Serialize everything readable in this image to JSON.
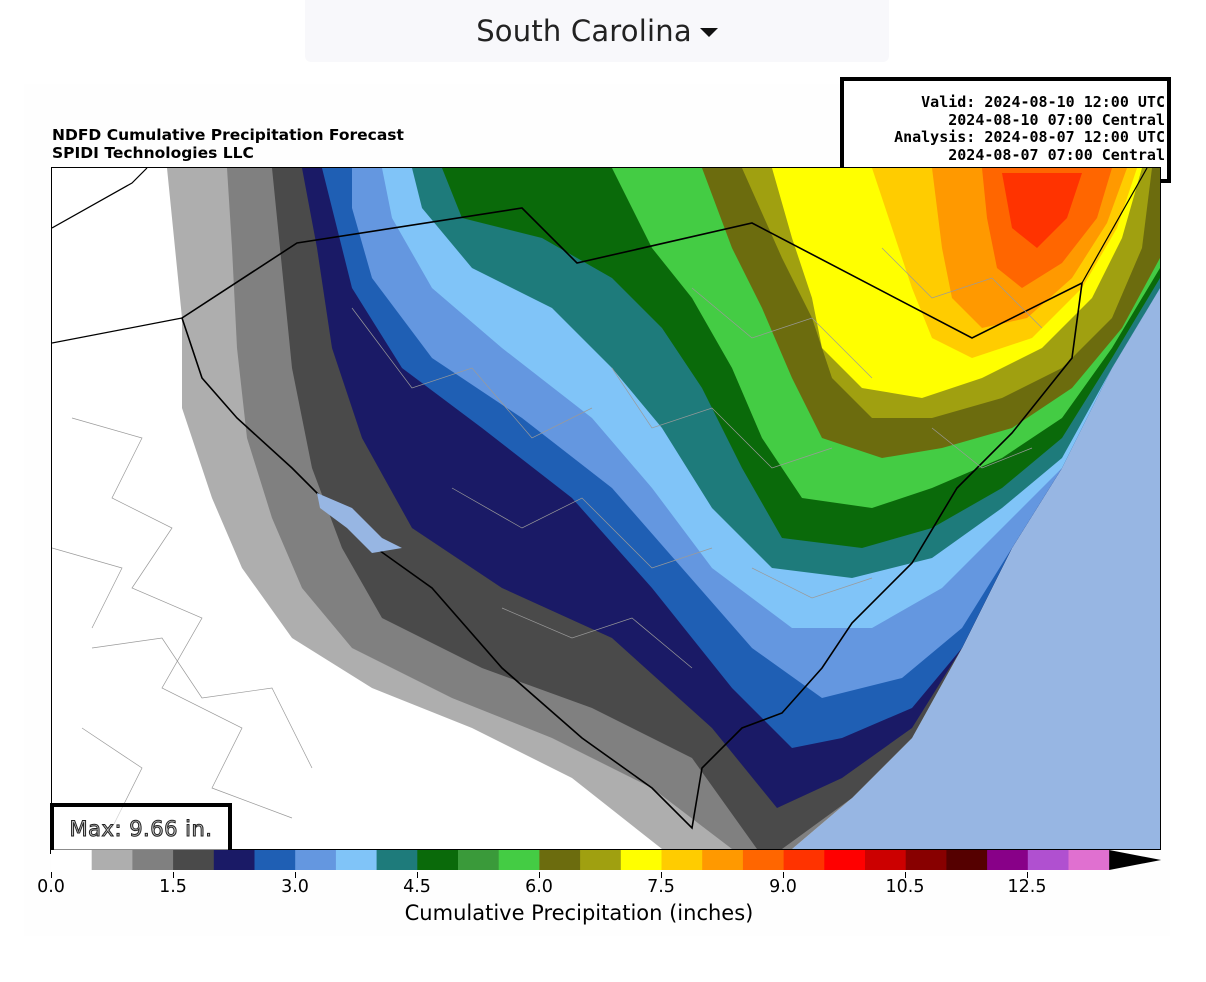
{
  "region_selector": {
    "label": "South Carolina",
    "icon": "caret-down-icon"
  },
  "figure": {
    "title": "NDFD Cumulative Precipitation Forecast",
    "subtitle": "SPIDI Technologies LLC",
    "valid_lines": [
      "Valid: 2024-08-10 12:00 UTC",
      "2024-08-10 07:00 Central",
      "Analysis: 2024-08-07 12:00 UTC",
      "2024-08-07 07:00 Central"
    ],
    "max_label": "Max: 9.66 in."
  },
  "colorbar": {
    "label": "Cumulative Precipitation (inches)",
    "tick_labels": [
      "0.0",
      "1.5",
      "3.0",
      "4.5",
      "6.0",
      "7.5",
      "9.0",
      "10.5",
      "12.5"
    ],
    "colors": [
      "#ffffff",
      "#aeaeae",
      "#808080",
      "#4a4a4a",
      "#1a1a66",
      "#1f5fb4",
      "#6497e0",
      "#80c4f8",
      "#1e7b7b",
      "#0a6a0a",
      "#3a9a3a",
      "#44cc44",
      "#6c6c0e",
      "#a0a010",
      "#ffff00",
      "#ffcc00",
      "#ff9900",
      "#ff6600",
      "#ff3300",
      "#ff0000",
      "#cc0000",
      "#880000",
      "#550000",
      "#880088",
      "#b050d0",
      "#e070d0"
    ],
    "extend_color": "#000000"
  },
  "map_colors": {
    "ocean": "#97b6e3",
    "land_low": "#ffffff"
  }
}
